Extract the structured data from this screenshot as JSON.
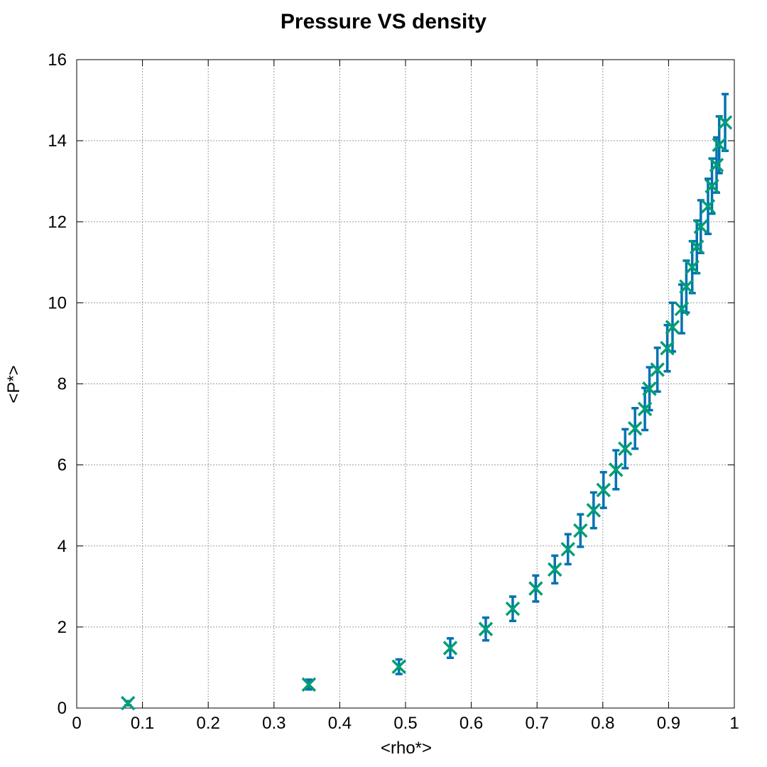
{
  "chart_data": {
    "type": "scatter",
    "title": "Pressure VS density",
    "xlabel": "<rho*>",
    "ylabel": "<P*>",
    "xlim": [
      0,
      1
    ],
    "ylim": [
      0,
      16
    ],
    "xticks": [
      "0",
      "0.1",
      "0.2",
      "0.3",
      "0.4",
      "0.5",
      "0.6",
      "0.7",
      "0.8",
      "0.9",
      "1"
    ],
    "yticks": [
      "0",
      "2",
      "4",
      "6",
      "8",
      "10",
      "12",
      "14",
      "16"
    ],
    "grid": true,
    "legend": "none",
    "colors": {
      "errorbars": "#0072b2",
      "points": "#009e73",
      "grid": "#999999"
    },
    "series": [
      {
        "marker": "x",
        "x": [
          0.078,
          0.353,
          0.49,
          0.568,
          0.622,
          0.663,
          0.698,
          0.727,
          0.747,
          0.766,
          0.786,
          0.801,
          0.82,
          0.834,
          0.849,
          0.864,
          0.871,
          0.883,
          0.898,
          0.906,
          0.92,
          0.927,
          0.936,
          0.943,
          0.949,
          0.96,
          0.966,
          0.973,
          0.977,
          0.986
        ],
        "y": [
          0.12,
          0.58,
          1.02,
          1.48,
          1.95,
          2.45,
          2.95,
          3.42,
          3.92,
          4.38,
          4.88,
          5.38,
          5.88,
          6.4,
          6.9,
          7.38,
          7.88,
          8.35,
          8.88,
          9.4,
          9.85,
          10.4,
          10.88,
          11.38,
          11.88,
          12.38,
          12.88,
          13.4,
          13.9,
          14.45
        ],
        "yerr": [
          0.05,
          0.12,
          0.18,
          0.24,
          0.28,
          0.3,
          0.32,
          0.34,
          0.37,
          0.4,
          0.44,
          0.44,
          0.48,
          0.48,
          0.5,
          0.52,
          0.53,
          0.54,
          0.57,
          0.6,
          0.6,
          0.64,
          0.64,
          0.65,
          0.65,
          0.68,
          0.68,
          0.68,
          0.7,
          0.7
        ]
      }
    ]
  }
}
